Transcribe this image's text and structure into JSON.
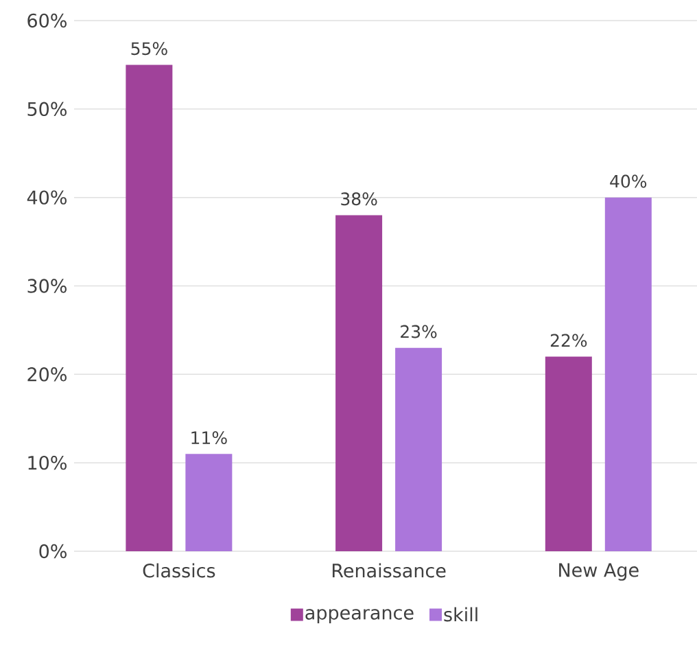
{
  "chart_data": {
    "type": "bar",
    "categories": [
      "Classics",
      "Renaissance",
      "New Age"
    ],
    "series": [
      {
        "name": "appearance",
        "color": "#a0429a",
        "values": [
          55,
          38,
          22
        ],
        "value_labels": [
          "55%",
          "38%",
          "22%"
        ]
      },
      {
        "name": "skill",
        "color": "#ab76db",
        "values": [
          11,
          23,
          40
        ],
        "value_labels": [
          "11%",
          "23%",
          "40%"
        ]
      }
    ],
    "ylim": [
      0,
      60
    ],
    "yticks": [
      {
        "value": 0,
        "label": "0%"
      },
      {
        "value": 10,
        "label": "10%"
      },
      {
        "value": 20,
        "label": "20%"
      },
      {
        "value": 30,
        "label": "30%"
      },
      {
        "value": 40,
        "label": "40%"
      },
      {
        "value": 50,
        "label": "50%"
      },
      {
        "value": 60,
        "label": "60%"
      }
    ],
    "grid": "y",
    "legend": "bottom"
  }
}
